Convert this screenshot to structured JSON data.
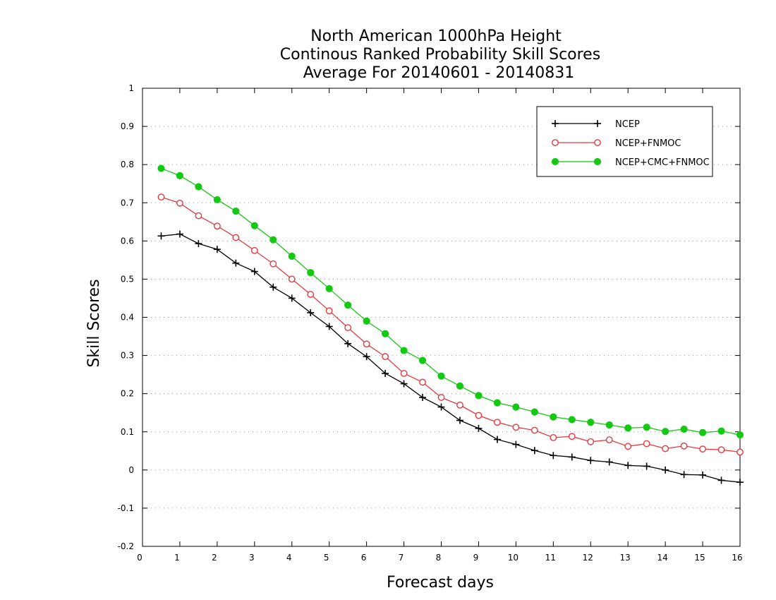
{
  "chart_data": {
    "type": "line",
    "title": [
      "North American 1000hPa Height",
      "Continous Ranked Probability Skill Scores",
      "Average For 20140601 - 20140831"
    ],
    "xlabel": "Forecast days",
    "ylabel": "Skill Scores",
    "xlim": [
      0,
      16
    ],
    "ylim": [
      -0.2,
      1
    ],
    "xticks": [
      "0",
      "1",
      "2",
      "3",
      "4",
      "5",
      "6",
      "7",
      "8",
      "9",
      "10",
      "11",
      "12",
      "13",
      "14",
      "15",
      "16"
    ],
    "yticks": [
      "-0.2",
      "-0.1",
      "0",
      "0.1",
      "0.2",
      "0.3",
      "0.4",
      "0.5",
      "0.6",
      "0.7",
      "0.8",
      "0.9",
      "1"
    ],
    "grid": "horizontal-dotted",
    "legend_position": "top-right",
    "x": [
      0.5,
      1,
      1.5,
      2,
      2.5,
      3,
      3.5,
      4,
      4.5,
      5,
      5.5,
      6,
      6.5,
      7,
      7.5,
      8,
      8.5,
      9,
      9.5,
      10,
      10.5,
      11,
      11.5,
      12,
      12.5,
      13,
      13.5,
      14,
      14.5,
      15,
      15.5,
      16
    ],
    "series": [
      {
        "name": "NCEP",
        "color": "#000000",
        "marker": "plus",
        "values": [
          0.613,
          0.618,
          0.593,
          0.578,
          0.542,
          0.52,
          0.479,
          0.45,
          0.412,
          0.376,
          0.331,
          0.297,
          0.253,
          0.226,
          0.19,
          0.165,
          0.13,
          0.109,
          0.08,
          0.067,
          0.051,
          0.038,
          0.034,
          0.025,
          0.021,
          0.012,
          0.01,
          0.0,
          -0.012,
          -0.013,
          -0.027,
          -0.032
        ]
      },
      {
        "name": "NCEP+FNMOC",
        "color": "#e8383d",
        "marker": "open-circle",
        "values": [
          0.715,
          0.699,
          0.666,
          0.639,
          0.609,
          0.575,
          0.54,
          0.5,
          0.46,
          0.417,
          0.373,
          0.33,
          0.297,
          0.253,
          0.23,
          0.19,
          0.17,
          0.143,
          0.125,
          0.112,
          0.104,
          0.085,
          0.088,
          0.074,
          0.079,
          0.062,
          0.069,
          0.056,
          0.063,
          0.055,
          0.053,
          0.047
        ]
      },
      {
        "name": "NCEP+CMC+FNMOC",
        "color": "#14c814",
        "marker": "filled-circle",
        "values": [
          0.79,
          0.771,
          0.742,
          0.708,
          0.678,
          0.64,
          0.603,
          0.56,
          0.517,
          0.475,
          0.432,
          0.39,
          0.357,
          0.313,
          0.287,
          0.246,
          0.22,
          0.195,
          0.176,
          0.165,
          0.152,
          0.139,
          0.132,
          0.125,
          0.118,
          0.11,
          0.112,
          0.101,
          0.107,
          0.098,
          0.102,
          0.092
        ]
      }
    ]
  }
}
